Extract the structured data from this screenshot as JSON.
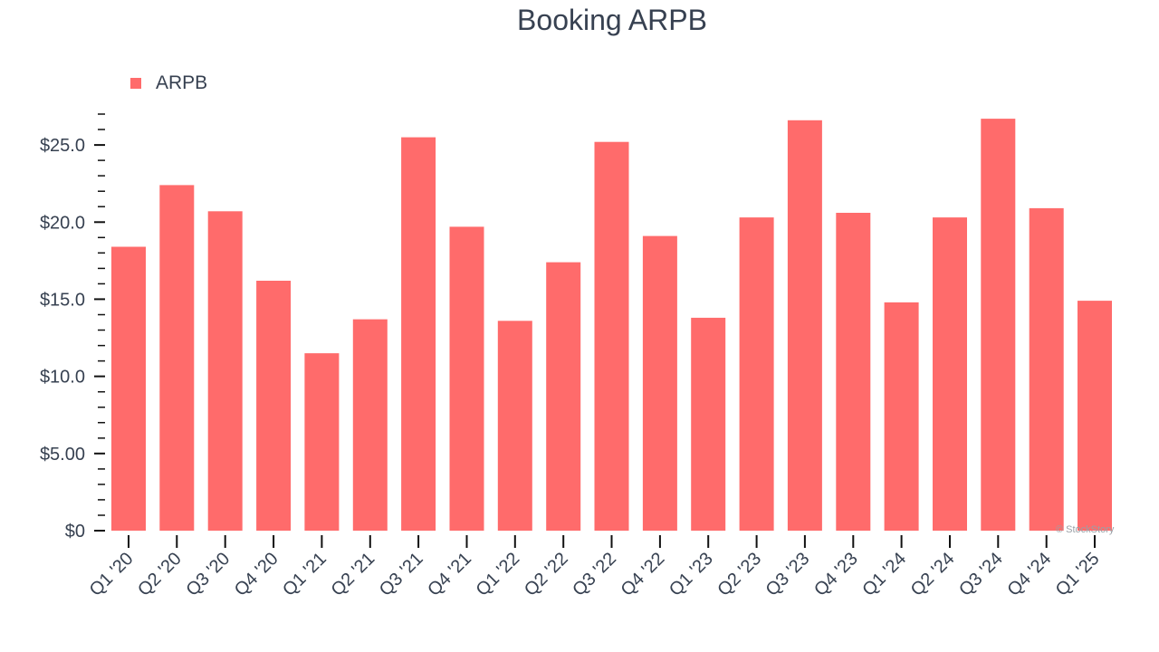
{
  "chart_data": {
    "type": "bar",
    "title": "Booking ARPB",
    "xlabel": "",
    "ylabel": "",
    "categories": [
      "Q1 '20",
      "Q2 '20",
      "Q3 '20",
      "Q4 '20",
      "Q1 '21",
      "Q2 '21",
      "Q3 '21",
      "Q4 '21",
      "Q1 '22",
      "Q2 '22",
      "Q3 '22",
      "Q4 '22",
      "Q1 '23",
      "Q2 '23",
      "Q3 '23",
      "Q4 '23",
      "Q1 '24",
      "Q2 '24",
      "Q3 '24",
      "Q4 '24",
      "Q1 '25"
    ],
    "series": [
      {
        "name": "ARPB",
        "values": [
          18.4,
          22.4,
          20.7,
          16.2,
          11.5,
          13.7,
          25.5,
          19.7,
          13.6,
          17.4,
          25.2,
          19.1,
          13.8,
          20.3,
          26.6,
          20.6,
          14.8,
          20.3,
          26.7,
          20.9,
          14.9
        ]
      }
    ],
    "ylim": [
      0,
      27
    ],
    "yticks": [
      0,
      5,
      10,
      15,
      20,
      25
    ],
    "ytick_labels": [
      "$0",
      "$5.00",
      "$10.0",
      "$15.0",
      "$20.0",
      "$25.0"
    ],
    "legend_position": "top-left",
    "grid": false,
    "bar_color": "#ff6b6b",
    "watermark": "© StockStory"
  }
}
